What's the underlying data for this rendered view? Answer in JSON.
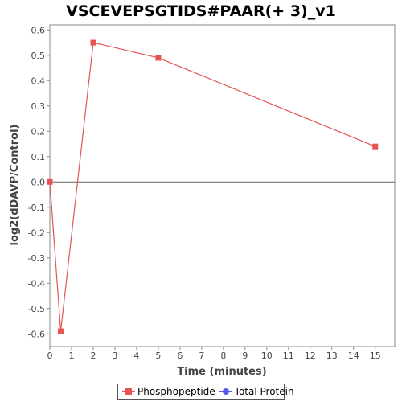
{
  "chart_data": {
    "type": "line",
    "title": "VSCEVEPSGTIDS#PAAR(+ 3)_v1",
    "xlabel": "Time (minutes)",
    "ylabel": "log2(dDAVP/Control)",
    "xlim": [
      0,
      15.9
    ],
    "ylim": [
      -0.65,
      0.62
    ],
    "xticks": [
      0,
      1,
      2,
      3,
      4,
      5,
      6,
      7,
      8,
      9,
      10,
      11,
      12,
      13,
      14,
      15
    ],
    "yticks": [
      -0.6,
      -0.5,
      -0.4,
      -0.3,
      -0.2,
      -0.1,
      0.0,
      0.1,
      0.2,
      0.3,
      0.4,
      0.5,
      0.6
    ],
    "ytick_labels": [
      "-0.6",
      "-0.5",
      "-0.4",
      "-0.3",
      "-0.2",
      "-0.1",
      "0.0",
      "0.1",
      "0.2",
      "0.3",
      "0.4",
      "0.5",
      "0.6"
    ],
    "zero_line": true,
    "grid": false,
    "legend_position": "bottom",
    "series": [
      {
        "name": "Phosphopeptide",
        "color": "#e55353",
        "marker": "square",
        "x": [
          0,
          0.5,
          2,
          5,
          15
        ],
        "y": [
          0.0,
          -0.59,
          0.55,
          0.49,
          0.14
        ]
      },
      {
        "name": "Total Protein",
        "color": "#5a5ae6",
        "marker": "circle",
        "x": [],
        "y": []
      }
    ]
  }
}
